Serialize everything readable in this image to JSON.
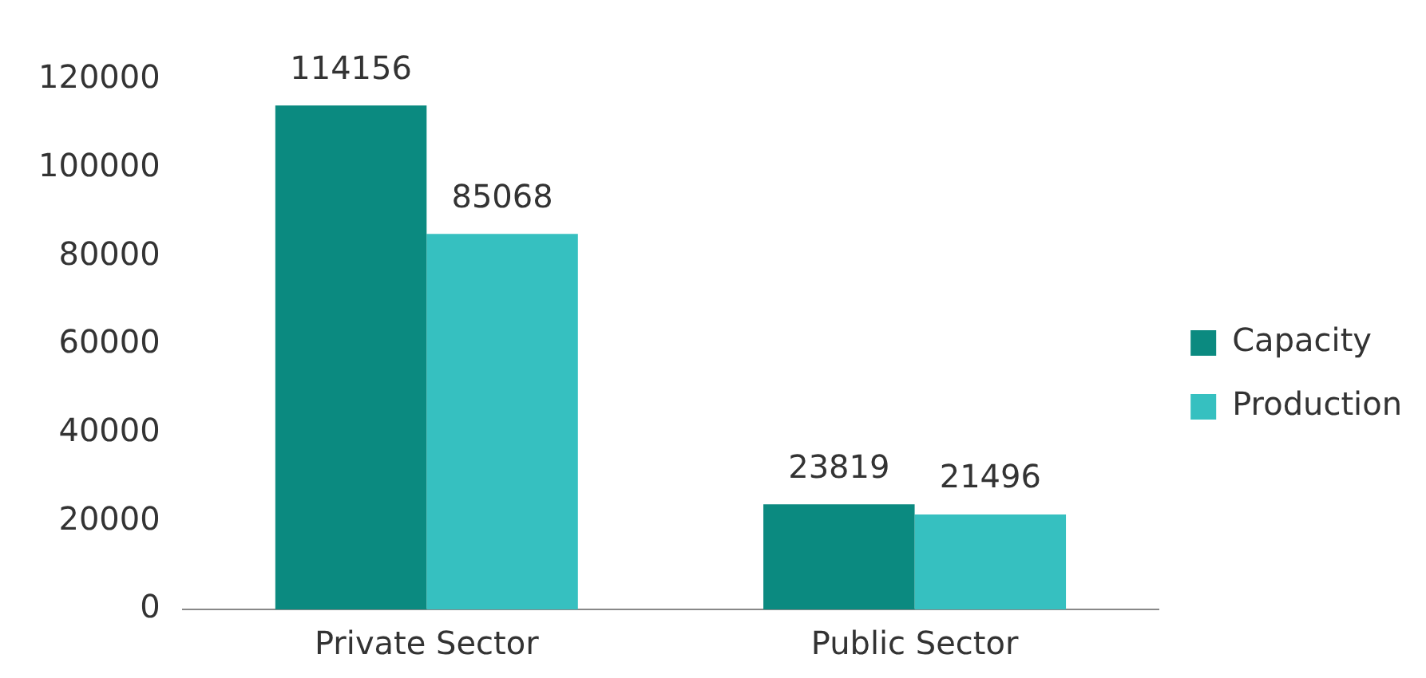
{
  "chart_data": {
    "type": "bar",
    "categories": [
      "Private Sector",
      "Public Sector"
    ],
    "series": [
      {
        "name": "Capacity",
        "color": "#0b8a80",
        "values": [
          114156,
          23819
        ]
      },
      {
        "name": "Production",
        "color": "#36c0c0",
        "values": [
          85068,
          21496
        ]
      }
    ],
    "ylim": [
      0,
      120000
    ],
    "yticks": [
      0,
      20000,
      40000,
      60000,
      80000,
      100000,
      120000
    ],
    "grid": false,
    "legend": "right",
    "data_labels": true
  }
}
